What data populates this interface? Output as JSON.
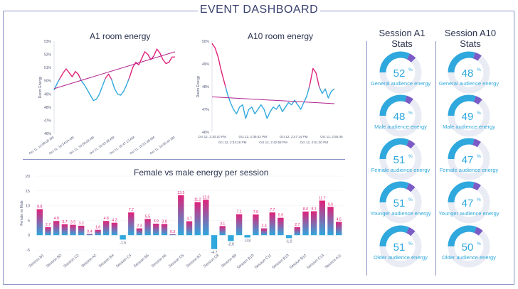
{
  "header": {
    "title": "EVENT DASHBOARD"
  },
  "colors": {
    "pink": "#e0227a",
    "blue": "#2fa8dd",
    "purple": "#7b5cc7",
    "frame": "#8a93c4",
    "trend": "#b0238f"
  },
  "chart_data": [
    {
      "type": "line",
      "title": "A1 room energy",
      "ylabel": "Room Energy",
      "ylim": [
        46,
        53
      ],
      "yticks": [
        "46%",
        "47%",
        "48%",
        "49%",
        "50%",
        "51%",
        "52%",
        "53%"
      ],
      "xticks": [
        "Oct 11, 12:08:09 AM",
        "Oct 11, 10:34:04 AM",
        "Oct 11, 10:58:09 AM",
        "Oct 11, 10:42:38 AM",
        "Oct 11, 10:47:13 AM",
        "Oct 11, 10:51:38 AM",
        "Oct 11, 10:55:44 AM"
      ],
      "series": [
        {
          "values": [
            49.3,
            49.8,
            50.2,
            50.6,
            50.9,
            50.6,
            50.3,
            50.7,
            50.5,
            50.0,
            49.7,
            49.3,
            48.9,
            48.5,
            48.6,
            49.0,
            49.6,
            50.2,
            50.5,
            50.1,
            49.4,
            49.0,
            48.9,
            49.2,
            49.7,
            50.3,
            51.0,
            51.4,
            51.2,
            51.7,
            52.2,
            52.0,
            51.6,
            51.9,
            52.4,
            52.1,
            51.6,
            51.3,
            51.4,
            51.8,
            51.8
          ]
        }
      ],
      "trend": [
        49.4,
        52.2
      ]
    },
    {
      "type": "line",
      "title": "A10 room energy",
      "ylabel": "Room Energy",
      "ylim": [
        46,
        50
      ],
      "yticks": [
        "46%",
        "47%",
        "48%",
        "49%",
        "50%"
      ],
      "xticks": [
        "Oct 12, 2:30:10 PM",
        "Oct 12, 2:34:26 PM",
        "Oct 12, 2:38:42 PM",
        "Oct 12, 2:42:58 PM",
        "Oct 12, 2:47:14 PM",
        "Oct 12, 2:51:30 PM",
        "Oct 12, 2:55:46 PM"
      ],
      "series": [
        {
          "values": [
            49.9,
            49.7,
            49.3,
            48.7,
            48.2,
            47.7,
            47.3,
            47.0,
            46.8,
            47.1,
            47.2,
            46.6,
            47.0,
            47.1,
            46.8,
            47.0,
            47.2,
            47.0,
            46.6,
            46.9,
            47.1,
            47.0,
            47.2,
            46.9,
            47.1,
            47.3,
            47.2,
            47.4,
            47.2,
            47.0,
            47.3,
            47.6,
            48.1,
            48.8,
            48.6,
            48.0,
            47.7,
            47.9,
            47.5,
            47.8,
            47.9
          ]
        }
      ],
      "trend": [
        47.55,
        47.25
      ]
    },
    {
      "type": "bar",
      "title": "Female vs male energy per session",
      "ylabel": "Female vs Male",
      "ylim": [
        -5,
        20
      ],
      "yticks": [
        "-5",
        "0",
        "5",
        "10",
        "15",
        "20"
      ],
      "xticks": [
        "Session B1",
        "Session B2",
        "Session C2",
        "Session A2",
        "Session B4",
        "Session C4",
        "Session B5",
        "Session A5",
        "Session C6",
        "Session B7",
        "Session C8",
        "Session B9",
        "Session B10",
        "Session C11",
        "Session B10",
        "Session B12",
        "Session C13",
        "Session A11"
      ],
      "values": [
        8.8,
        2.7,
        4.8,
        3.7,
        3.5,
        3.2,
        0.4,
        1.8,
        4.8,
        4.2,
        -1.5,
        7.7,
        2.3,
        5.5,
        3.9,
        3.8,
        0.3,
        13.5,
        4.7,
        11.2,
        12.0,
        -4.7,
        3.1,
        -2.0,
        7.1,
        -0.8,
        7.0,
        2.3,
        7.7,
        5.9,
        -1.0,
        2.7,
        8.0,
        8.1,
        11.7,
        9.6,
        4.5
      ],
      "labels": [
        "8.8",
        "2.7",
        "4.8",
        "3.7",
        "3.5",
        "3.2",
        "0.4",
        "1.8",
        "4.8",
        "4.2",
        "-1.5",
        "7.7",
        "2.3",
        "5.5",
        "3.9",
        "3.8",
        "0.3",
        "13.5",
        "4.7",
        "11.2",
        "12.0",
        "-4.7",
        "3.1",
        "-2.0",
        "7.1",
        "-0.8",
        "7.0",
        "2.3",
        "7.7",
        "5.9",
        "-1.0",
        "2.7",
        "8.0",
        "8.1",
        "11.7",
        "9.6",
        "4.5"
      ]
    }
  ],
  "stats": [
    {
      "title": "Session A1 Stats",
      "gauges": [
        {
          "value": 52,
          "label": "General audience energy"
        },
        {
          "value": 48,
          "label": "Male audience energy"
        },
        {
          "value": 51,
          "label": "Female audience energy"
        },
        {
          "value": 51,
          "label": "Younger audience energy"
        },
        {
          "value": 51,
          "label": "Older audience energy"
        }
      ]
    },
    {
      "title": "Session A10 Stats",
      "gauges": [
        {
          "value": 48,
          "label": "General audience energy"
        },
        {
          "value": 49,
          "label": "Male audience energy"
        },
        {
          "value": 47,
          "label": "Female audience energy"
        },
        {
          "value": 47,
          "label": "Younger audience energy"
        },
        {
          "value": 50,
          "label": "Older audience energy"
        }
      ]
    }
  ]
}
